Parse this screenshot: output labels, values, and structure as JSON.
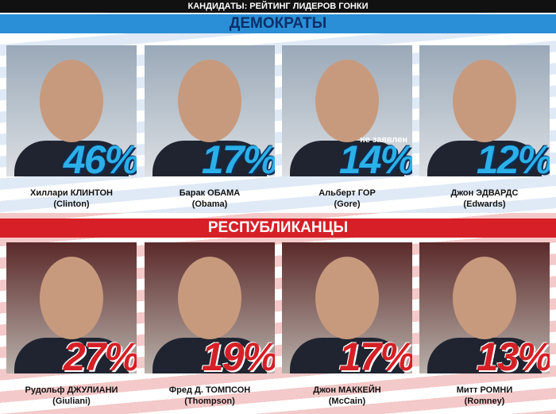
{
  "header": {
    "title": "КАНДИДАТЫ: РЕЙТИНГ ЛИДЕРОВ ГОНКИ"
  },
  "sections": [
    {
      "title": "ДЕМОКРАТЫ",
      "candidates": [
        {
          "name": "Хиллари КЛИНТОН",
          "latin": "(Clinton)",
          "rating": "46%"
        },
        {
          "name": "Барак ОБАМА",
          "latin": "(Obama)",
          "rating": "17%"
        },
        {
          "name": "Альберт ГОР",
          "latin": "(Gore)",
          "rating": "14%",
          "note": "не заявлен"
        },
        {
          "name": "Джон ЭДВАРДС",
          "latin": "(Edwards)",
          "rating": "12%"
        }
      ]
    },
    {
      "title": "РЕСПУБЛИКАНЦЫ",
      "candidates": [
        {
          "name": "Рудольф ДЖУЛИАНИ",
          "latin": "(Giuliani)",
          "rating": "27%"
        },
        {
          "name": "Фред Д. ТОМПСОН",
          "latin": "(Thompson)",
          "rating": "19%"
        },
        {
          "name": "Джон МАККЕЙН",
          "latin": "(McCain)",
          "rating": "17%"
        },
        {
          "name": "Митт РОМНИ",
          "latin": "(Romney)",
          "rating": "13%"
        }
      ]
    }
  ]
}
